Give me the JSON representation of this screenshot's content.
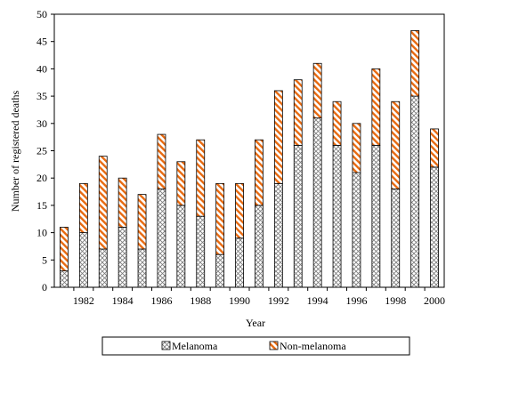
{
  "chart_data": {
    "type": "bar",
    "stacked": true,
    "xlabel": "Year",
    "ylabel": "Number of registered deaths",
    "ylim": [
      0,
      50
    ],
    "yticks": [
      0,
      5,
      10,
      15,
      20,
      25,
      30,
      35,
      40,
      45,
      50
    ],
    "categories": [
      "1981",
      "1982",
      "1983",
      "1984",
      "1985",
      "1986",
      "1987",
      "1988",
      "1989",
      "1990",
      "1991",
      "1992",
      "1993",
      "1994",
      "1995",
      "1996",
      "1997",
      "1998",
      "1999",
      "2000"
    ],
    "xtick_labels": [
      "",
      "1982",
      "",
      "1984",
      "",
      "1986",
      "",
      "1988",
      "",
      "1990",
      "",
      "1992",
      "",
      "1994",
      "",
      "1996",
      "",
      "1998",
      "",
      "2000"
    ],
    "series": [
      {
        "name": "Melanoma",
        "pattern": "crosshatch",
        "color": "#7a7a7a",
        "values": [
          3,
          10,
          7,
          11,
          7,
          18,
          15,
          13,
          6,
          9,
          15,
          19,
          26,
          31,
          26,
          21,
          26,
          18,
          35,
          22
        ]
      },
      {
        "name": "Non-melanoma",
        "pattern": "diagonal-stripes",
        "color": "#e86a10",
        "values": [
          8,
          9,
          17,
          9,
          10,
          10,
          8,
          14,
          13,
          10,
          12,
          17,
          12,
          10,
          8,
          9,
          14,
          16,
          12,
          7
        ]
      }
    ],
    "grid": false,
    "legend": {
      "position": "bottom",
      "boxed": true
    }
  }
}
